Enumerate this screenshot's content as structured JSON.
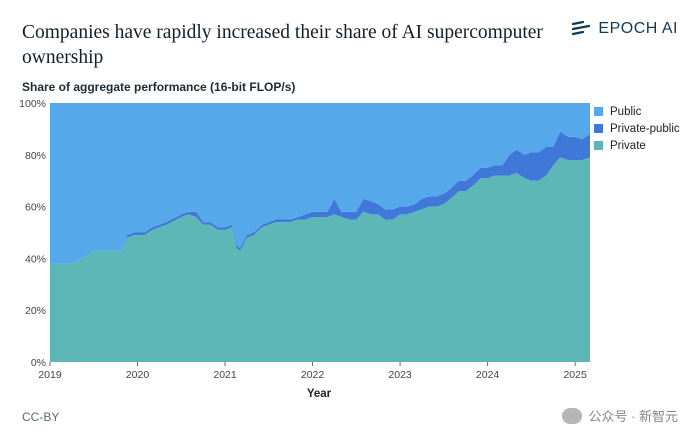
{
  "header": {
    "title": "Companies have rapidly increased their share of AI supercomputer ownership",
    "logo_text": "EPOCH AI",
    "logo_icon": "epoch-logo-icon"
  },
  "footer": {
    "license": "CC-BY",
    "watermark_text": "公众号 · 新智元",
    "watermark_overlay": "epoch.ai"
  },
  "chart_data": {
    "type": "area",
    "stacked": true,
    "ylabel": "Share of aggregate performance (16-bit FLOP/s)",
    "xlabel": "Year",
    "x_ticks": [
      "2019",
      "2020",
      "2021",
      "2022",
      "2023",
      "2024",
      "2025"
    ],
    "y_ticks": [
      "0%",
      "20%",
      "40%",
      "60%",
      "80%",
      "100%"
    ],
    "xlim": [
      2019.0,
      2025.17
    ],
    "ylim": [
      0,
      100
    ],
    "legend_position": "right",
    "colors": {
      "Public": "#55a8ea",
      "Private-public": "#3f78d8",
      "Private": "#5cb7b6"
    },
    "legend": [
      "Public",
      "Private-public",
      "Private"
    ],
    "x": [
      2019.0,
      2019.25,
      2019.42,
      2019.5,
      2019.67,
      2019.83,
      2019.88,
      2019.96,
      2020.08,
      2020.17,
      2020.25,
      2020.33,
      2020.5,
      2020.58,
      2020.67,
      2020.75,
      2020.83,
      2020.92,
      2021.0,
      2021.08,
      2021.13,
      2021.17,
      2021.25,
      2021.33,
      2021.42,
      2021.5,
      2021.58,
      2021.67,
      2021.75,
      2021.83,
      2021.92,
      2022.0,
      2022.08,
      2022.17,
      2022.25,
      2022.33,
      2022.42,
      2022.5,
      2022.58,
      2022.67,
      2022.75,
      2022.83,
      2022.92,
      2023.0,
      2023.08,
      2023.17,
      2023.25,
      2023.33,
      2023.42,
      2023.5,
      2023.58,
      2023.67,
      2023.75,
      2023.83,
      2023.92,
      2024.0,
      2024.08,
      2024.17,
      2024.25,
      2024.33,
      2024.42,
      2024.5,
      2024.58,
      2024.67,
      2024.75,
      2024.83,
      2024.92,
      2025.0,
      2025.08,
      2025.17
    ],
    "series": [
      {
        "name": "Private",
        "values": [
          38,
          38,
          41,
          43,
          43,
          43,
          48,
          49,
          49,
          51,
          52,
          53,
          56,
          57,
          56,
          53,
          53,
          51,
          51,
          52,
          44,
          43,
          48,
          49,
          52,
          53,
          54,
          54,
          54,
          55,
          55,
          56,
          56,
          56,
          57,
          56,
          55,
          55,
          58,
          57,
          57,
          55,
          55,
          57,
          57,
          58,
          59,
          60,
          60,
          61,
          63,
          66,
          66,
          68,
          71,
          71,
          72,
          72,
          72,
          73,
          71,
          70,
          70,
          72,
          76,
          79,
          78,
          78,
          78,
          79
        ]
      },
      {
        "name": "Private-public",
        "values": [
          0,
          0,
          0,
          0,
          0,
          0,
          1,
          1,
          1,
          1,
          1,
          1,
          1,
          1,
          2,
          1,
          1,
          1,
          1,
          1,
          1,
          1,
          1,
          1,
          1,
          1,
          1,
          1,
          1,
          1,
          2,
          2,
          2,
          2,
          6,
          2,
          3,
          3,
          5,
          5,
          4,
          4,
          4,
          3,
          3,
          3,
          4,
          4,
          4,
          4,
          4,
          4,
          4,
          4,
          4,
          4,
          4,
          4,
          8,
          9,
          9,
          11,
          11,
          11,
          7,
          10,
          9,
          9,
          8,
          9
        ]
      },
      {
        "name": "Public",
        "values": [
          62,
          62,
          59,
          57,
          57,
          57,
          51,
          50,
          50,
          48,
          47,
          46,
          43,
          42,
          42,
          46,
          46,
          48,
          48,
          47,
          55,
          56,
          51,
          50,
          47,
          46,
          45,
          45,
          45,
          44,
          43,
          42,
          42,
          42,
          37,
          42,
          42,
          42,
          37,
          38,
          39,
          41,
          41,
          40,
          40,
          39,
          37,
          36,
          36,
          35,
          33,
          30,
          30,
          28,
          25,
          25,
          24,
          24,
          20,
          18,
          20,
          19,
          19,
          17,
          17,
          11,
          13,
          13,
          14,
          12
        ]
      }
    ]
  }
}
